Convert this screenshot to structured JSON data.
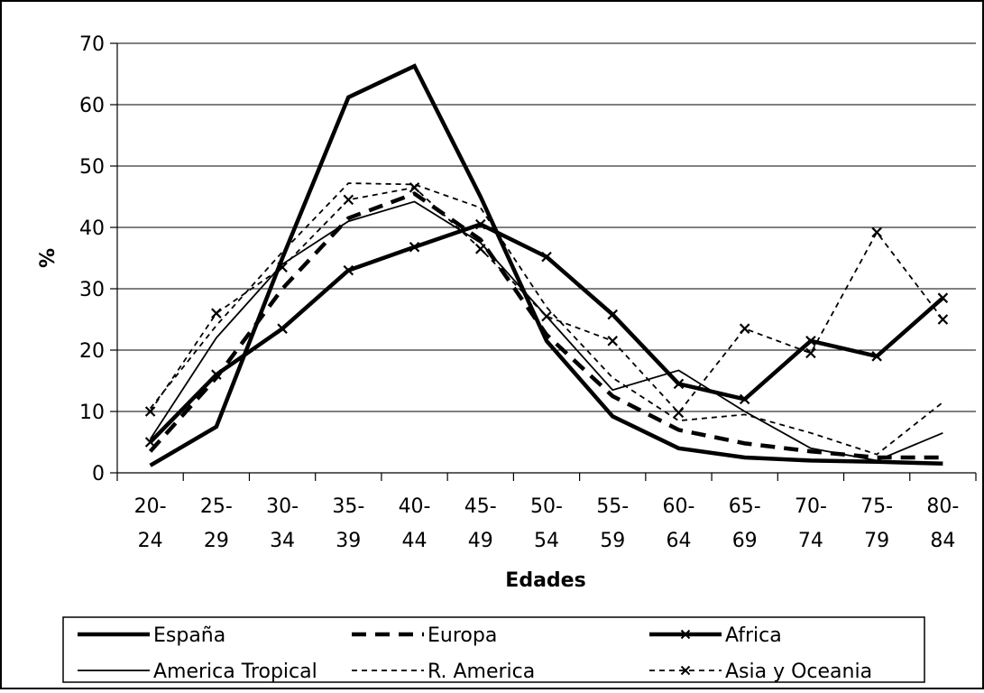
{
  "chart_data": {
    "type": "line",
    "title": "",
    "xlabel": "Edades",
    "ylabel": "%",
    "ylim": [
      0,
      70
    ],
    "yticks": [
      "0",
      "10",
      "20",
      "30",
      "40",
      "50",
      "60",
      "70"
    ],
    "categories": [
      [
        "20-",
        "24"
      ],
      [
        "25-",
        "29"
      ],
      [
        "30-",
        "34"
      ],
      [
        "35-",
        "39"
      ],
      [
        "40-",
        "44"
      ],
      [
        "45-",
        "49"
      ],
      [
        "50-",
        "54"
      ],
      [
        "55-",
        "59"
      ],
      [
        "60-",
        "64"
      ],
      [
        "65-",
        "69"
      ],
      [
        "70-",
        "74"
      ],
      [
        "75-",
        "79"
      ],
      [
        "80-",
        "84"
      ]
    ],
    "grid": "horizontal",
    "legend": "bottom",
    "series": [
      {
        "name": "España",
        "style": "thick-solid",
        "color": "#000000",
        "values": [
          1.2,
          7.5,
          35,
          61.2,
          66.3,
          45,
          21.5,
          9.2,
          4,
          2.5,
          2,
          1.8,
          1.5
        ]
      },
      {
        "name": "Europa",
        "style": "thick-dashed",
        "color": "#000000",
        "values": [
          3.5,
          15.5,
          30,
          41.5,
          45.5,
          38,
          22.5,
          12.5,
          7,
          4.8,
          3.5,
          2.5,
          2.5
        ]
      },
      {
        "name": "Africa",
        "style": "thick-solid-x",
        "color": "#000000",
        "values": [
          5,
          16,
          23.5,
          33,
          36.8,
          40.5,
          35.2,
          25.8,
          14.5,
          12,
          21.5,
          19,
          28.5
        ]
      },
      {
        "name": "America Tropical",
        "style": "thin-solid",
        "color": "#000000",
        "values": [
          5.5,
          22,
          34,
          41,
          44.2,
          37.5,
          25.5,
          13.5,
          16.7,
          10,
          4,
          2,
          6.5
        ]
      },
      {
        "name": "R. America",
        "style": "thin-dashed",
        "color": "#000000",
        "values": [
          10.5,
          24,
          36,
          47.2,
          47,
          43.2,
          27,
          15.5,
          8.5,
          9.5,
          6.5,
          3,
          11.5
        ]
      },
      {
        "name": "Asia y Oceania",
        "style": "thin-dashed-x",
        "color": "#000000",
        "values": [
          10,
          26,
          33.5,
          44.5,
          46.5,
          36.5,
          25.5,
          21.5,
          9.8,
          23.5,
          19.5,
          39.2,
          25
        ]
      }
    ]
  }
}
